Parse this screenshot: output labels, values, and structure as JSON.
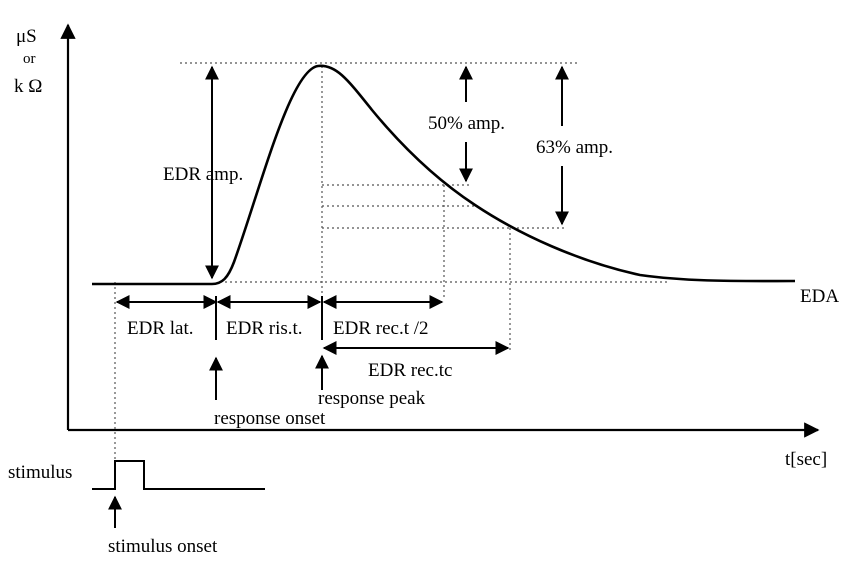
{
  "axes": {
    "y_unit_top": "μS",
    "y_unit_mid": "or",
    "y_unit_bottom": "k Ω",
    "x_label": "t[sec]"
  },
  "signals": {
    "eda": "EDA",
    "stimulus": "stimulus"
  },
  "amplitudes": {
    "edr_amp": "EDR amp.",
    "half_amp": "50% amp.",
    "tc_amp": "63% amp."
  },
  "intervals": {
    "latency": "EDR lat.",
    "rise_time": "EDR ris.t.",
    "half_recovery": "EDR rec.t /2",
    "recovery_tc": "EDR rec.tc"
  },
  "events": {
    "response_onset": "response onset",
    "response_peak": "response peak",
    "stimulus_onset": "stimulus onset"
  }
}
